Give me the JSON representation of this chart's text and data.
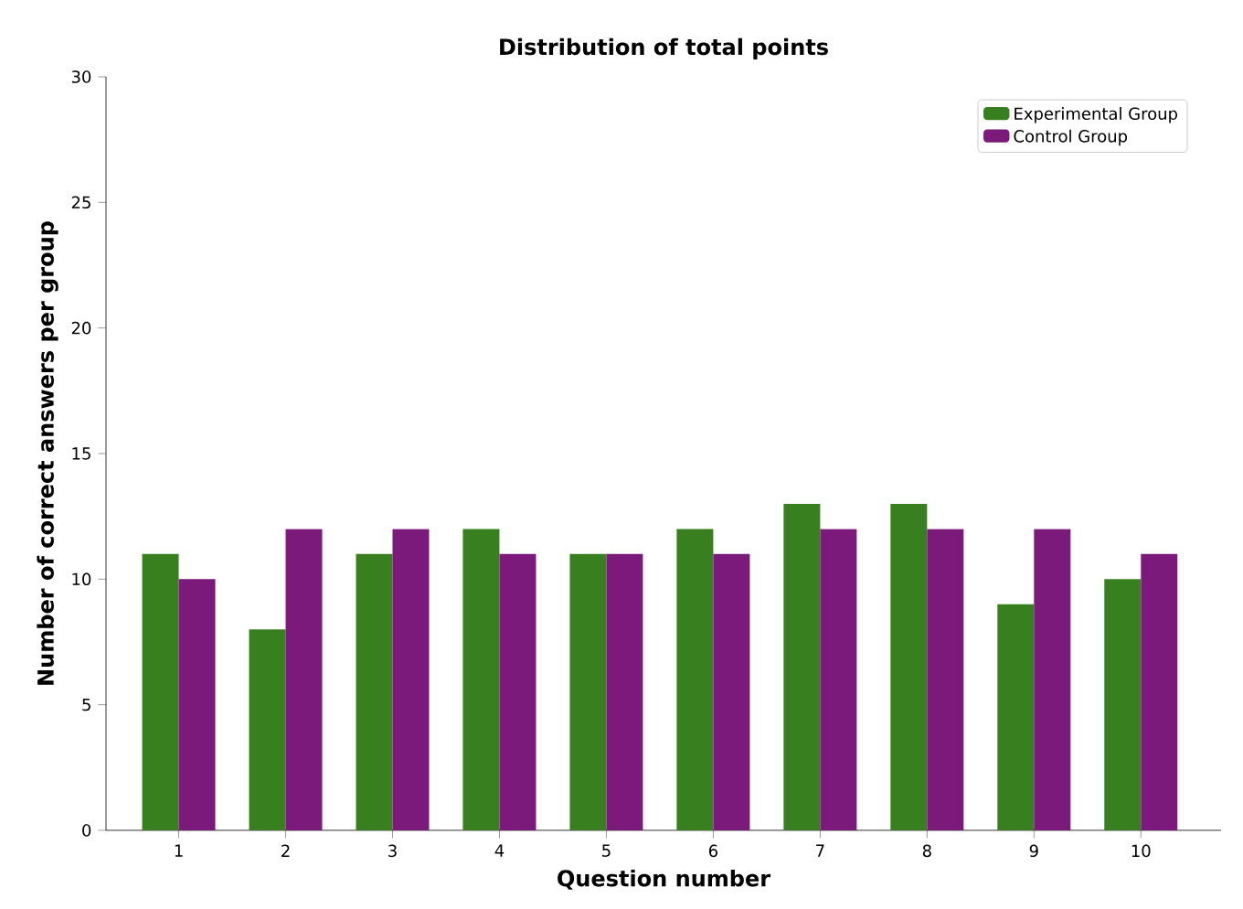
{
  "chart_data": {
    "type": "bar",
    "title": "Distribution of total points",
    "xlabel": "Question number",
    "ylabel": "Number of correct answers per group",
    "categories": [
      "1",
      "2",
      "3",
      "4",
      "5",
      "6",
      "7",
      "8",
      "9",
      "10"
    ],
    "series": [
      {
        "name": "Experimental Group",
        "color": "#38801f",
        "values": [
          11,
          8,
          11,
          12,
          11,
          12,
          13,
          13,
          9,
          10
        ]
      },
      {
        "name": "Control Group",
        "color": "#7b1a7b",
        "values": [
          10,
          12,
          12,
          11,
          11,
          11,
          12,
          12,
          12,
          11
        ]
      }
    ],
    "ylim": [
      0,
      30
    ],
    "yticks": [
      0,
      5,
      10,
      15,
      20,
      25,
      30
    ],
    "grid": false,
    "legend": "top right"
  }
}
